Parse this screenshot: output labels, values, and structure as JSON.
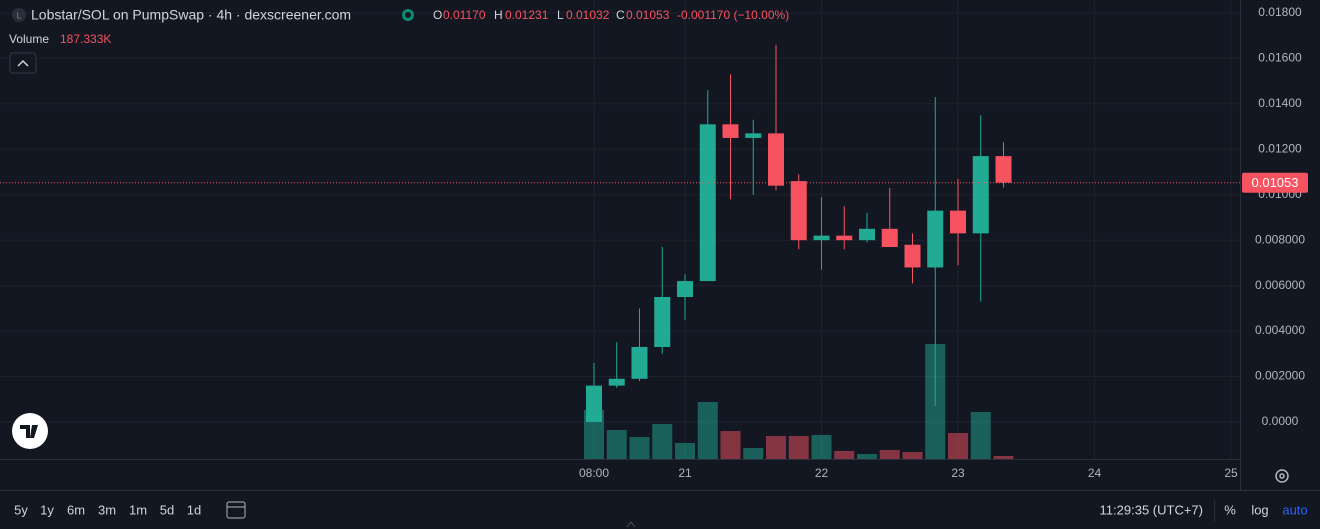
{
  "header": {
    "icon_letter": "L",
    "title": "Lobstar/SOL on PumpSwap · 4h · dexscreener.com",
    "ohlc": [
      {
        "key": "O",
        "value": "0.01170"
      },
      {
        "key": "H",
        "value": "0.01231"
      },
      {
        "key": "L",
        "value": "0.01032"
      },
      {
        "key": "C",
        "value": "0.01053"
      }
    ],
    "change": "-0.001170 (−10.00%)",
    "volume_label": "Volume",
    "volume_value": "187.333K"
  },
  "chart_data": {
    "type": "candlestick",
    "categories": [
      "08:00",
      null,
      null,
      null,
      "21",
      null,
      null,
      null,
      null,
      null,
      "22",
      null,
      null,
      null,
      null,
      null,
      "23",
      null,
      null,
      null,
      null,
      null,
      "24",
      null,
      null,
      null,
      null,
      null,
      "25"
    ],
    "open": [
      0.0,
      0.0016,
      0.0019,
      0.0033,
      0.0055,
      0.0062,
      0.0131,
      0.0125,
      0.0127,
      0.0106,
      0.008,
      0.0082,
      0.008,
      0.0085,
      0.0078,
      0.0068,
      0.0093,
      0.0083,
      0.0117,
      null,
      null,
      null,
      null,
      null,
      null,
      null,
      null,
      null,
      null
    ],
    "high": [
      0.0026,
      0.0035,
      0.005,
      0.0077,
      0.0065,
      0.0146,
      0.0153,
      0.0133,
      0.0166,
      0.0109,
      0.0099,
      0.0095,
      0.0092,
      0.0103,
      0.0083,
      0.0143,
      0.0107,
      0.0135,
      0.01231,
      null,
      null,
      null,
      null,
      null,
      null,
      null,
      null,
      null,
      null
    ],
    "low": [
      0.0,
      0.0015,
      0.0018,
      0.003,
      0.0045,
      0.0062,
      0.0098,
      0.01,
      0.0102,
      0.0076,
      0.0067,
      0.0076,
      0.0079,
      0.0077,
      0.0061,
      0.0007,
      0.0069,
      0.0053,
      0.01032,
      null,
      null,
      null,
      null,
      null,
      null,
      null,
      null,
      null,
      null
    ],
    "close": [
      0.0016,
      0.0019,
      0.0033,
      0.0055,
      0.0062,
      0.0131,
      0.0125,
      0.0127,
      0.0104,
      0.008,
      0.0082,
      0.008,
      0.0085,
      0.0077,
      0.0068,
      0.0093,
      0.0083,
      0.0117,
      0.01053,
      null,
      null,
      null,
      null,
      null,
      null,
      null,
      null,
      null,
      null
    ],
    "volume": [
      3060000,
      1811000,
      1374000,
      2186000,
      999000,
      3559000,
      1748000,
      687000,
      1436000,
      1436000,
      1499000,
      500000,
      312000,
      562000,
      437000,
      7181000,
      1624000,
      2935000,
      187333,
      null,
      null,
      null,
      null,
      null,
      null,
      null,
      null,
      null,
      null
    ],
    "up_color": "#22ab94",
    "down_color": "#f7525f",
    "ylim": [
      -0.00163,
      0.01857
    ],
    "yticks": [
      {
        "value": 0,
        "label": "0.0000"
      },
      {
        "value": 0.002,
        "label": "0.002000"
      },
      {
        "value": 0.004,
        "label": "0.004000"
      },
      {
        "value": 0.006,
        "label": "0.006000"
      },
      {
        "value": 0.008,
        "label": "0.008000"
      },
      {
        "value": 0.01,
        "label": "0.01000"
      },
      {
        "value": 0.012,
        "label": "0.01200"
      },
      {
        "value": 0.014,
        "label": "0.01400"
      },
      {
        "value": 0.016,
        "label": "0.01600"
      },
      {
        "value": 0.018,
        "label": "0.01800"
      }
    ],
    "volume_ylim": [
      0,
      28660000
    ],
    "last_price": {
      "value": 0.01053,
      "label": "0.01053"
    },
    "grid": true
  },
  "toolbar": {
    "ranges": [
      "5y",
      "1y",
      "6m",
      "3m",
      "1m",
      "5d",
      "1d"
    ],
    "clock": "11:29:35 (UTC+7)",
    "scale_buttons": [
      "%",
      "log",
      "auto"
    ]
  }
}
